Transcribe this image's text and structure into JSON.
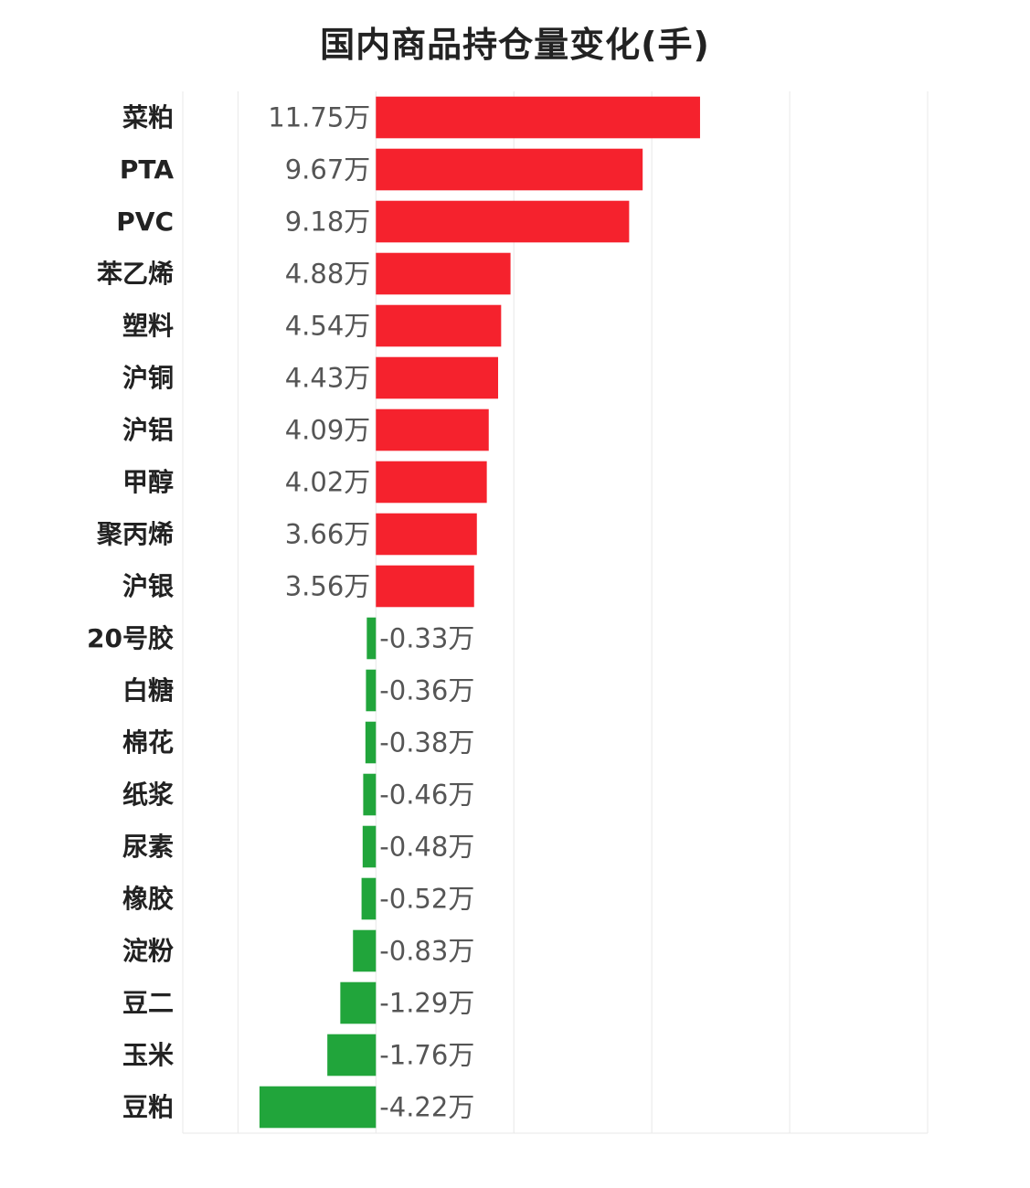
{
  "chart_data": {
    "type": "bar",
    "orientation": "horizontal",
    "title": "国内商品持仓量变化(手)",
    "xlabel": "",
    "ylabel": "",
    "xlim": [
      -7,
      20
    ],
    "grid": true,
    "legend": "none",
    "categories": [
      "菜粕",
      "PTA",
      "PVC",
      "苯乙烯",
      "塑料",
      "沪铜",
      "沪铝",
      "甲醇",
      "聚丙烯",
      "沪银",
      "20号胶",
      "白糖",
      "棉花",
      "纸浆",
      "尿素",
      "橡胶",
      "淀粉",
      "豆二",
      "玉米",
      "豆粕"
    ],
    "values": [
      11.75,
      9.67,
      9.18,
      4.88,
      4.54,
      4.43,
      4.09,
      4.02,
      3.66,
      3.56,
      -0.33,
      -0.36,
      -0.38,
      -0.46,
      -0.48,
      -0.52,
      -0.83,
      -1.29,
      -1.76,
      -4.22
    ],
    "value_labels": [
      "11.75万",
      "9.67万",
      "9.18万",
      "4.88万",
      "4.54万",
      "4.43万",
      "4.09万",
      "4.02万",
      "3.66万",
      "3.56万",
      "-0.33万",
      "-0.36万",
      "-0.38万",
      "-0.46万",
      "-0.48万",
      "-0.52万",
      "-0.83万",
      "-1.29万",
      "-1.76万",
      "-4.22万"
    ],
    "colors": {
      "positive": "#f5222d",
      "negative": "#21a53b",
      "grid": "#e8e8e8"
    }
  }
}
